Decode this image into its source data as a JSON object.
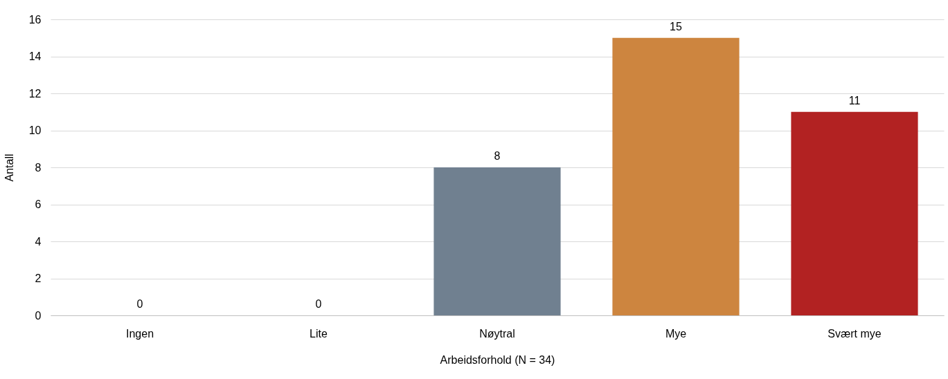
{
  "chart_data": {
    "type": "bar",
    "xlabel": "Arbeidsforhold (N = 34)",
    "ylabel": "Antall",
    "categories": [
      "Ingen",
      "Lite",
      "Nøytral",
      "Mye",
      "Svært mye"
    ],
    "values": [
      0,
      0,
      8,
      15,
      11
    ],
    "colors": [
      "#4472c4",
      "#a5a5a5",
      "#708090",
      "#cd853f",
      "#b22222"
    ],
    "ylim": [
      0,
      16
    ],
    "yticks": [
      0,
      2,
      4,
      6,
      8,
      10,
      12,
      14,
      16
    ],
    "grid": "y",
    "data_labels": true
  }
}
